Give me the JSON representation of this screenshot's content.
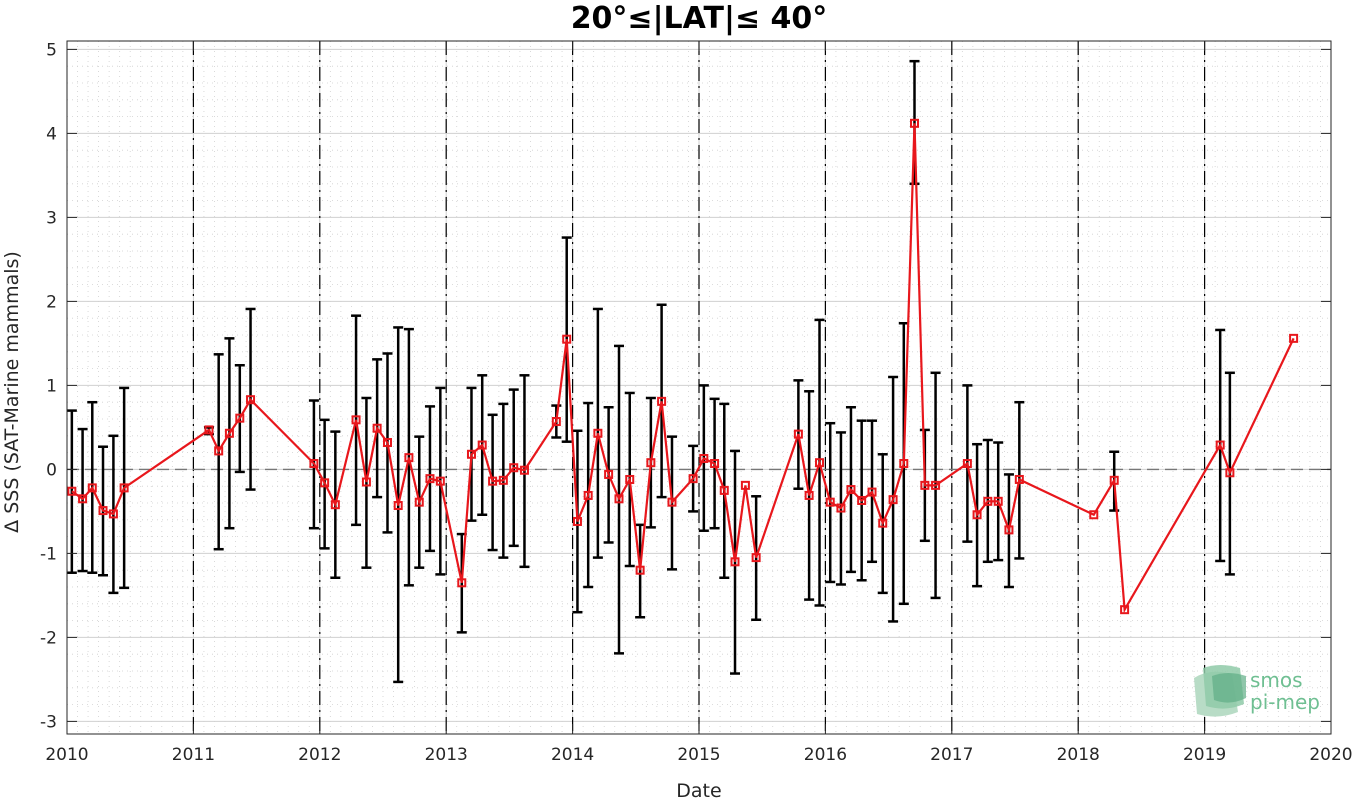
{
  "chart_data": {
    "type": "line",
    "title": "20°≤|LAT|≤ 40°",
    "xlabel": "Date",
    "ylabel": "Δ SSS (SAT-Marine mammals)",
    "xlim": [
      "2010-01-01",
      "2020-01-01"
    ],
    "ylim": [
      -3.15,
      5.1
    ],
    "x_ticks": [
      "2010",
      "2011",
      "2012",
      "2013",
      "2014",
      "2015",
      "2016",
      "2017",
      "2018",
      "2019",
      "2020"
    ],
    "y_ticks": [
      5,
      4,
      3,
      2,
      1,
      0,
      -1,
      -2,
      -3
    ],
    "grid": true,
    "reference_line": 0,
    "year_boundaries": [
      "2011",
      "2012",
      "2013",
      "2014",
      "2015",
      "2016",
      "2017",
      "2018",
      "2019"
    ],
    "colors": {
      "series": "#e8171c",
      "errorbar": "#000000",
      "grid": "#d0d0d0",
      "axis": "#262626"
    },
    "series": [
      {
        "points": [
          {
            "x": "2010-01-15",
            "y": -0.26,
            "lo": -1.23,
            "hi": 0.7
          },
          {
            "x": "2010-02-15",
            "y": -0.35,
            "lo": -1.21,
            "hi": 0.48
          },
          {
            "x": "2010-03-15",
            "y": -0.22,
            "lo": -1.23,
            "hi": 0.8
          },
          {
            "x": "2010-04-15",
            "y": -0.49,
            "lo": -1.26,
            "hi": 0.27
          },
          {
            "x": "2010-05-15",
            "y": -0.53,
            "lo": -1.47,
            "hi": 0.4
          },
          {
            "x": "2010-06-15",
            "y": -0.22,
            "lo": -1.41,
            "hi": 0.97
          },
          {
            "x": "2011-02-15",
            "y": 0.47,
            "lo": 0.42,
            "hi": 0.5
          },
          {
            "x": "2011-03-15",
            "y": 0.22,
            "lo": -0.95,
            "hi": 1.37
          },
          {
            "x": "2011-04-15",
            "y": 0.43,
            "lo": -0.7,
            "hi": 1.56
          },
          {
            "x": "2011-05-15",
            "y": 0.61,
            "lo": -0.03,
            "hi": 1.24
          },
          {
            "x": "2011-06-15",
            "y": 0.83,
            "lo": -0.24,
            "hi": 1.91
          },
          {
            "x": "2011-12-15",
            "y": 0.07,
            "lo": -0.7,
            "hi": 0.82
          },
          {
            "x": "2012-01-15",
            "y": -0.16,
            "lo": -0.94,
            "hi": 0.59
          },
          {
            "x": "2012-02-15",
            "y": -0.42,
            "lo": -1.29,
            "hi": 0.45
          },
          {
            "x": "2012-04-15",
            "y": 0.59,
            "lo": -0.66,
            "hi": 1.83
          },
          {
            "x": "2012-05-15",
            "y": -0.15,
            "lo": -1.17,
            "hi": 0.85
          },
          {
            "x": "2012-06-15",
            "y": 0.49,
            "lo": -0.33,
            "hi": 1.31
          },
          {
            "x": "2012-07-15",
            "y": 0.32,
            "lo": -0.75,
            "hi": 1.38
          },
          {
            "x": "2012-08-15",
            "y": -0.43,
            "lo": -2.53,
            "hi": 1.69
          },
          {
            "x": "2012-09-15",
            "y": 0.14,
            "lo": -1.38,
            "hi": 1.67
          },
          {
            "x": "2012-10-15",
            "y": -0.39,
            "lo": -1.17,
            "hi": 0.39
          },
          {
            "x": "2012-11-15",
            "y": -0.11,
            "lo": -0.97,
            "hi": 0.75
          },
          {
            "x": "2012-12-15",
            "y": -0.14,
            "lo": -1.25,
            "hi": 0.97
          },
          {
            "x": "2013-02-15",
            "y": -1.35,
            "lo": -1.94,
            "hi": -0.77
          },
          {
            "x": "2013-03-15",
            "y": 0.18,
            "lo": -0.61,
            "hi": 0.97
          },
          {
            "x": "2013-04-15",
            "y": 0.29,
            "lo": -0.54,
            "hi": 1.12
          },
          {
            "x": "2013-05-15",
            "y": -0.14,
            "lo": -0.96,
            "hi": 0.65
          },
          {
            "x": "2013-06-15",
            "y": -0.13,
            "lo": -1.05,
            "hi": 0.78
          },
          {
            "x": "2013-07-15",
            "y": 0.02,
            "lo": -0.91,
            "hi": 0.95
          },
          {
            "x": "2013-08-15",
            "y": -0.01,
            "lo": -1.16,
            "hi": 1.12
          },
          {
            "x": "2013-11-15",
            "y": 0.57,
            "lo": 0.38,
            "hi": 0.76
          },
          {
            "x": "2013-12-15",
            "y": 1.55,
            "lo": 0.33,
            "hi": 2.76
          },
          {
            "x": "2014-01-15",
            "y": -0.62,
            "lo": -1.7,
            "hi": 0.46
          },
          {
            "x": "2014-02-15",
            "y": -0.31,
            "lo": -1.4,
            "hi": 0.79
          },
          {
            "x": "2014-03-15",
            "y": 0.43,
            "lo": -1.05,
            "hi": 1.91
          },
          {
            "x": "2014-04-15",
            "y": -0.06,
            "lo": -0.87,
            "hi": 0.74
          },
          {
            "x": "2014-05-15",
            "y": -0.35,
            "lo": -2.19,
            "hi": 1.47
          },
          {
            "x": "2014-06-15",
            "y": -0.12,
            "lo": -1.15,
            "hi": 0.91
          },
          {
            "x": "2014-07-15",
            "y": -1.2,
            "lo": -1.76,
            "hi": -0.66
          },
          {
            "x": "2014-08-15",
            "y": 0.08,
            "lo": -0.69,
            "hi": 0.85
          },
          {
            "x": "2014-09-15",
            "y": 0.81,
            "lo": -0.33,
            "hi": 1.96
          },
          {
            "x": "2014-10-15",
            "y": -0.39,
            "lo": -1.19,
            "hi": 0.39
          },
          {
            "x": "2014-12-15",
            "y": -0.11,
            "lo": -0.5,
            "hi": 0.28
          },
          {
            "x": "2015-01-15",
            "y": 0.13,
            "lo": -0.73,
            "hi": 1.0
          },
          {
            "x": "2015-02-15",
            "y": 0.07,
            "lo": -0.7,
            "hi": 0.84
          },
          {
            "x": "2015-03-15",
            "y": -0.25,
            "lo": -1.29,
            "hi": 0.78
          },
          {
            "x": "2015-04-15",
            "y": -1.1,
            "lo": -2.43,
            "hi": 0.22
          },
          {
            "x": "2015-05-15",
            "y": -0.19,
            "lo": -0.19,
            "hi": -0.19
          },
          {
            "x": "2015-06-15",
            "y": -1.05,
            "lo": -1.79,
            "hi": -0.32
          },
          {
            "x": "2015-10-15",
            "y": 0.42,
            "lo": -0.23,
            "hi": 1.06
          },
          {
            "x": "2015-11-15",
            "y": -0.31,
            "lo": -1.55,
            "hi": 0.93
          },
          {
            "x": "2015-12-15",
            "y": 0.08,
            "lo": -1.62,
            "hi": 1.78
          },
          {
            "x": "2016-01-15",
            "y": -0.39,
            "lo": -1.34,
            "hi": 0.55
          },
          {
            "x": "2016-02-15",
            "y": -0.46,
            "lo": -1.37,
            "hi": 0.44
          },
          {
            "x": "2016-03-15",
            "y": -0.24,
            "lo": -1.22,
            "hi": 0.74
          },
          {
            "x": "2016-04-15",
            "y": -0.37,
            "lo": -1.32,
            "hi": 0.58
          },
          {
            "x": "2016-05-15",
            "y": -0.27,
            "lo": -1.1,
            "hi": 0.58
          },
          {
            "x": "2016-06-15",
            "y": -0.64,
            "lo": -1.47,
            "hi": 0.18
          },
          {
            "x": "2016-07-15",
            "y": -0.36,
            "lo": -1.81,
            "hi": 1.1
          },
          {
            "x": "2016-08-15",
            "y": 0.07,
            "lo": -1.6,
            "hi": 1.74
          },
          {
            "x": "2016-09-15",
            "y": 4.12,
            "lo": 3.4,
            "hi": 4.86
          },
          {
            "x": "2016-10-15",
            "y": -0.19,
            "lo": -0.85,
            "hi": 0.47
          },
          {
            "x": "2016-11-15",
            "y": -0.19,
            "lo": -1.53,
            "hi": 1.15
          },
          {
            "x": "2017-02-15",
            "y": 0.07,
            "lo": -0.86,
            "hi": 1.0
          },
          {
            "x": "2017-03-15",
            "y": -0.54,
            "lo": -1.39,
            "hi": 0.3
          },
          {
            "x": "2017-04-15",
            "y": -0.38,
            "lo": -1.1,
            "hi": 0.35
          },
          {
            "x": "2017-05-15",
            "y": -0.38,
            "lo": -1.08,
            "hi": 0.32
          },
          {
            "x": "2017-06-15",
            "y": -0.72,
            "lo": -1.4,
            "hi": -0.06
          },
          {
            "x": "2017-07-15",
            "y": -0.12,
            "lo": -1.06,
            "hi": 0.8
          },
          {
            "x": "2018-02-15",
            "y": -0.54,
            "lo": -0.54,
            "hi": -0.54
          },
          {
            "x": "2018-04-15",
            "y": -0.13,
            "lo": -0.49,
            "hi": 0.21
          },
          {
            "x": "2018-05-15",
            "y": -1.67,
            "lo": -1.67,
            "hi": -1.67
          },
          {
            "x": "2019-02-15",
            "y": 0.29,
            "lo": -1.09,
            "hi": 1.66
          },
          {
            "x": "2019-03-15",
            "y": -0.04,
            "lo": -1.25,
            "hi": 1.15
          },
          {
            "x": "2019-09-15",
            "y": 1.56,
            "lo": 1.56,
            "hi": 1.56
          }
        ]
      }
    ]
  },
  "logo": {
    "line1": "smos",
    "line2": "pi-mep"
  }
}
